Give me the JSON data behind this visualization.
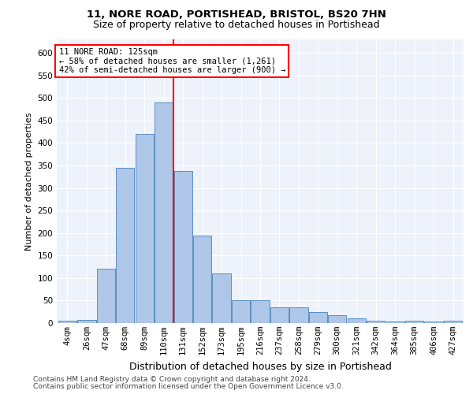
{
  "title1": "11, NORE ROAD, PORTISHEAD, BRISTOL, BS20 7HN",
  "title2": "Size of property relative to detached houses in Portishead",
  "xlabel": "Distribution of detached houses by size in Portishead",
  "ylabel": "Number of detached properties",
  "categories": [
    "4sqm",
    "26sqm",
    "47sqm",
    "68sqm",
    "89sqm",
    "110sqm",
    "131sqm",
    "152sqm",
    "173sqm",
    "195sqm",
    "216sqm",
    "237sqm",
    "258sqm",
    "279sqm",
    "300sqm",
    "321sqm",
    "342sqm",
    "364sqm",
    "385sqm",
    "406sqm",
    "427sqm"
  ],
  "values": [
    5,
    7,
    120,
    345,
    420,
    490,
    338,
    195,
    110,
    50,
    50,
    35,
    35,
    25,
    17,
    10,
    5,
    3,
    5,
    3,
    5
  ],
  "bar_color": "#aec6e8",
  "bar_edge_color": "#5a8fc2",
  "vline_color": "red",
  "annotation_text": "11 NORE ROAD: 125sqm\n← 58% of detached houses are smaller (1,261)\n42% of semi-detached houses are larger (900) →",
  "annotation_box_color": "white",
  "annotation_box_edge": "red",
  "ylim": [
    0,
    630
  ],
  "yticks": [
    0,
    50,
    100,
    150,
    200,
    250,
    300,
    350,
    400,
    450,
    500,
    550,
    600
  ],
  "footer1": "Contains HM Land Registry data © Crown copyright and database right 2024.",
  "footer2": "Contains public sector information licensed under the Open Government Licence v3.0.",
  "bg_color": "#eef2fa",
  "grid_color": "white",
  "title1_fontsize": 9.5,
  "title2_fontsize": 9,
  "xlabel_fontsize": 9,
  "ylabel_fontsize": 8,
  "tick_fontsize": 7.5,
  "footer_fontsize": 6.5
}
